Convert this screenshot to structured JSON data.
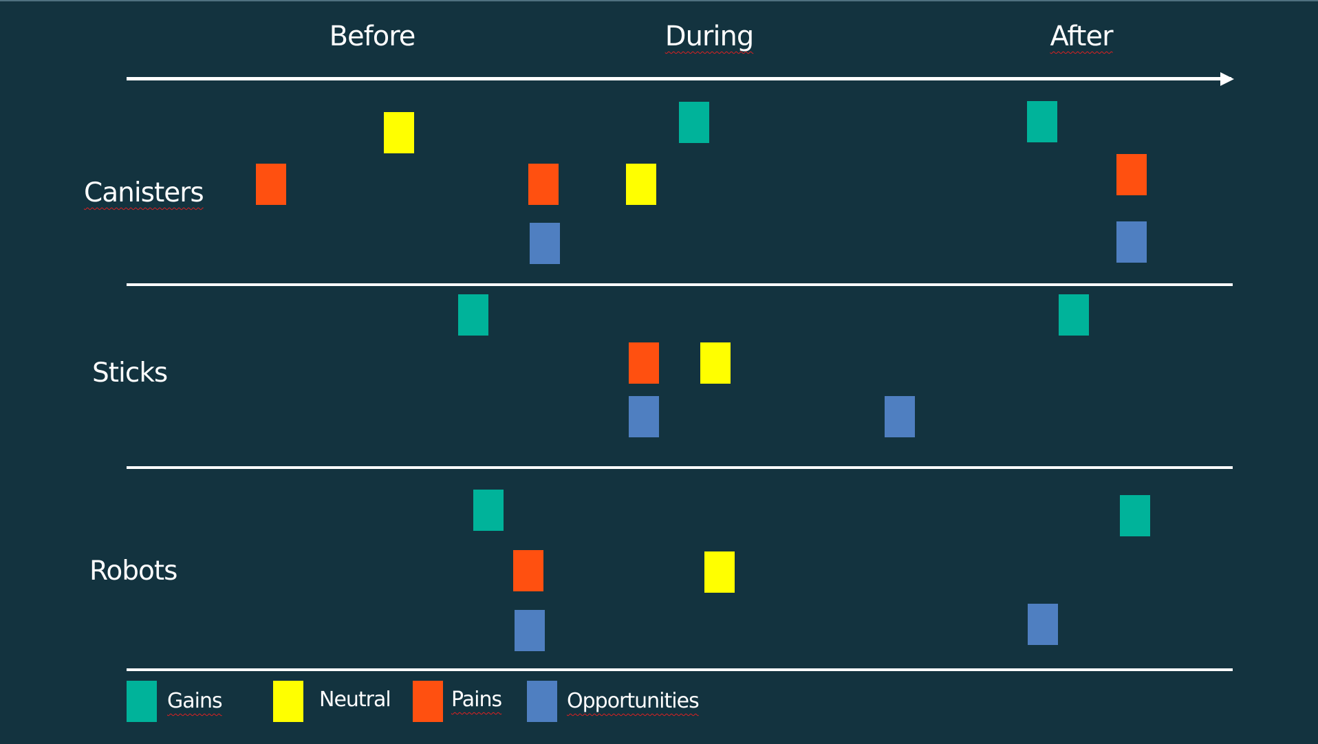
{
  "phases": {
    "before": "Before",
    "during": "During",
    "after": "After"
  },
  "rows": {
    "canisters": "Canisters",
    "sticks": "Sticks",
    "robots": "Robots"
  },
  "legend": {
    "gains": "Gains",
    "neutral": "Neutral",
    "pains": "Pains",
    "opportunities": "Opportunities"
  },
  "colors": {
    "background": "#13333f",
    "gains": "#00b39a",
    "neutral": "#ffff00",
    "pains": "#ff5010",
    "opportunities": "#4f7fc1",
    "lines": "#ffffff"
  }
}
